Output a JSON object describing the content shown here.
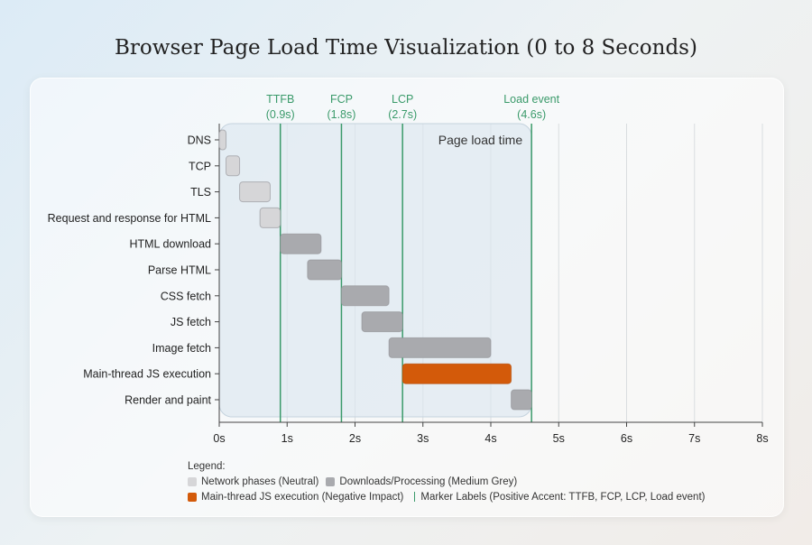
{
  "chart_data": {
    "type": "gantt",
    "title": "Browser Page Load Time Visualization (0 to 8 Seconds)",
    "xlim": [
      0,
      8
    ],
    "x_ticks": [
      "0s",
      "1s",
      "2s",
      "3s",
      "4s",
      "5s",
      "6s",
      "7s",
      "8s"
    ],
    "grid": true,
    "tasks": [
      {
        "label": "DNS",
        "start": 0,
        "end": 0.1,
        "category": "network"
      },
      {
        "label": "TCP",
        "start": 0.1,
        "end": 0.3,
        "category": "network"
      },
      {
        "label": "TLS",
        "start": 0.3,
        "end": 0.75,
        "category": "network"
      },
      {
        "label": "Request and response for HTML",
        "start": 0.6,
        "end": 0.9,
        "category": "network"
      },
      {
        "label": "HTML download",
        "start": 0.9,
        "end": 1.5,
        "category": "processing"
      },
      {
        "label": "Parse HTML",
        "start": 1.3,
        "end": 1.8,
        "category": "processing"
      },
      {
        "label": "CSS fetch",
        "start": 1.8,
        "end": 2.5,
        "category": "processing"
      },
      {
        "label": "JS fetch",
        "start": 2.1,
        "end": 2.7,
        "category": "processing"
      },
      {
        "label": "Image fetch",
        "start": 2.5,
        "end": 4.0,
        "category": "processing"
      },
      {
        "label": "Main-thread JS execution",
        "start": 2.7,
        "end": 4.3,
        "category": "js"
      },
      {
        "label": "Render and paint",
        "start": 4.3,
        "end": 4.6,
        "category": "processing"
      }
    ],
    "markers": [
      {
        "name": "TTFB",
        "label": "(0.9s)",
        "x": 0.9
      },
      {
        "name": "FCP",
        "label": "(1.8s)",
        "x": 1.8
      },
      {
        "name": "LCP",
        "label": "(2.7s)",
        "x": 2.7
      },
      {
        "name": "Load event",
        "label": "(4.6s)",
        "x": 4.6
      }
    ],
    "region": {
      "label": "Page load time",
      "start": 0,
      "end": 4.6
    },
    "colors": {
      "network": "#d6d6d8",
      "processing": "#a9aaae",
      "js": "#d35a0a",
      "marker": "#3a9a6a",
      "region": "#dbe7f0"
    },
    "legend": {
      "title": "Legend:",
      "network": "Network phases (Neutral)",
      "processing": "Downloads/Processing (Medium Grey)",
      "js": "Main-thread JS execution (Negative Impact)",
      "marker": "Marker Labels (Positive Accent: TTFB, FCP, LCP, Load event)"
    }
  }
}
